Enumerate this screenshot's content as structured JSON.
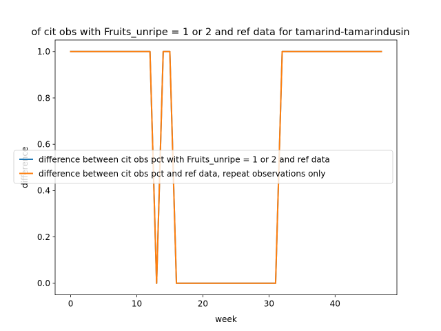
{
  "chart_data": {
    "type": "line",
    "title": "of cit obs with Fruits_unripe = 1 or 2 and ref data for tamarind-tamarindusin",
    "xlabel": "week",
    "ylabel": "difference",
    "xlim": [
      -2.35,
      49.35
    ],
    "ylim": [
      -0.05,
      1.05
    ],
    "xticks": [
      0,
      10,
      20,
      30,
      40
    ],
    "yticks": [
      0.0,
      0.2,
      0.4,
      0.6,
      0.8,
      1.0
    ],
    "ytick_labels": [
      "0.0",
      "0.2",
      "0.4",
      "0.6",
      "0.8",
      "1.0"
    ],
    "grid": false,
    "legend_position": "center-right",
    "series": [
      {
        "name": "difference between cit obs pct with Fruits_unripe = 1 or 2 and ref data",
        "color": "#1f77b4",
        "x": [
          0,
          1,
          2,
          3,
          4,
          5,
          6,
          7,
          8,
          9,
          10,
          11,
          12,
          13,
          14,
          15,
          16,
          17,
          18,
          19,
          20,
          21,
          22,
          23,
          24,
          25,
          26,
          27,
          28,
          29,
          30,
          31,
          32,
          33,
          34,
          35,
          36,
          37,
          38,
          39,
          40,
          41,
          42,
          43,
          44,
          45,
          46,
          47
        ],
        "y": [
          1,
          1,
          1,
          1,
          1,
          1,
          1,
          1,
          1,
          1,
          1,
          1,
          1,
          0,
          1,
          1,
          0,
          0,
          0,
          0,
          0,
          0,
          0,
          0,
          0,
          0,
          0,
          0,
          0,
          0,
          0,
          0,
          1,
          1,
          1,
          1,
          1,
          1,
          1,
          1,
          1,
          1,
          1,
          1,
          1,
          1,
          1,
          1
        ]
      },
      {
        "name": "difference between cit obs pct and ref data, repeat observations only",
        "color": "#ff7f0e",
        "x": [
          0,
          1,
          2,
          3,
          4,
          5,
          6,
          7,
          8,
          9,
          10,
          11,
          12,
          13,
          14,
          15,
          16,
          17,
          18,
          19,
          20,
          21,
          22,
          23,
          24,
          25,
          26,
          27,
          28,
          29,
          30,
          31,
          32,
          33,
          34,
          35,
          36,
          37,
          38,
          39,
          40,
          41,
          42,
          43,
          44,
          45,
          46,
          47
        ],
        "y": [
          1,
          1,
          1,
          1,
          1,
          1,
          1,
          1,
          1,
          1,
          1,
          1,
          1,
          0,
          1,
          1,
          0,
          0,
          0,
          0,
          0,
          0,
          0,
          0,
          0,
          0,
          0,
          0,
          0,
          0,
          0,
          0,
          1,
          1,
          1,
          1,
          1,
          1,
          1,
          1,
          1,
          1,
          1,
          1,
          1,
          1,
          1,
          1
        ]
      }
    ]
  }
}
